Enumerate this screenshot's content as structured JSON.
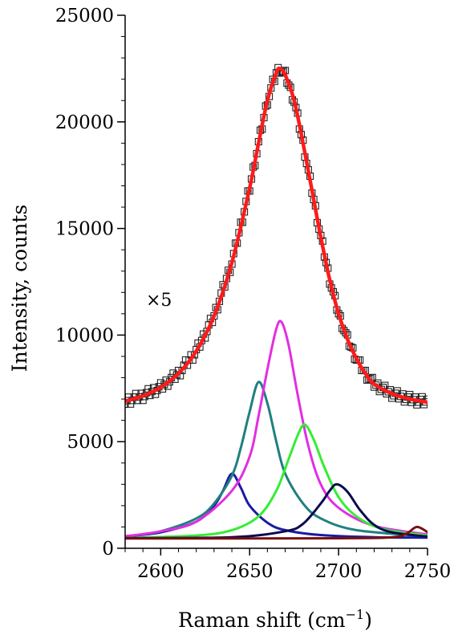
{
  "chart_data": {
    "type": "line",
    "xlabel_main": "Raman shift (cm",
    "xlabel_sup": "−1",
    "xlabel_close": ")",
    "ylabel": "Intensity, counts",
    "annotation": "×5",
    "xlim": [
      2580,
      2750
    ],
    "ylim": [
      0,
      25000
    ],
    "x_ticks": [
      2600,
      2650,
      2700,
      2750
    ],
    "y_ticks": [
      0,
      5000,
      10000,
      15000,
      20000,
      25000
    ],
    "grid": false,
    "series": [
      {
        "role": "measured",
        "marker": "open-square",
        "color": "#222222",
        "points": [
          [
            2580,
            6900
          ],
          [
            2590,
            7150
          ],
          [
            2600,
            7550
          ],
          [
            2610,
            8200
          ],
          [
            2620,
            9250
          ],
          [
            2630,
            10900
          ],
          [
            2640,
            13400
          ],
          [
            2650,
            16900
          ],
          [
            2655,
            19000
          ],
          [
            2660,
            21000
          ],
          [
            2665,
            22300
          ],
          [
            2667,
            22500
          ],
          [
            2670,
            22200
          ],
          [
            2675,
            21000
          ],
          [
            2680,
            19000
          ],
          [
            2685,
            16800
          ],
          [
            2690,
            14600
          ],
          [
            2695,
            12600
          ],
          [
            2700,
            11000
          ],
          [
            2705,
            9800
          ],
          [
            2710,
            8900
          ],
          [
            2715,
            8200
          ],
          [
            2720,
            7700
          ],
          [
            2730,
            7250
          ],
          [
            2740,
            7000
          ],
          [
            2750,
            6850
          ]
        ]
      },
      {
        "role": "fit",
        "color": "#ff1a1a",
        "points": [
          [
            2580,
            6900
          ],
          [
            2590,
            7150
          ],
          [
            2600,
            7550
          ],
          [
            2610,
            8200
          ],
          [
            2620,
            9250
          ],
          [
            2630,
            10900
          ],
          [
            2640,
            13400
          ],
          [
            2650,
            16900
          ],
          [
            2655,
            19000
          ],
          [
            2660,
            21000
          ],
          [
            2665,
            22300
          ],
          [
            2667,
            22500
          ],
          [
            2670,
            22200
          ],
          [
            2675,
            21000
          ],
          [
            2680,
            19000
          ],
          [
            2685,
            16800
          ],
          [
            2690,
            14600
          ],
          [
            2695,
            12600
          ],
          [
            2700,
            11000
          ],
          [
            2705,
            9800
          ],
          [
            2710,
            8900
          ],
          [
            2715,
            8200
          ],
          [
            2720,
            7700
          ],
          [
            2730,
            7250
          ],
          [
            2740,
            7000
          ],
          [
            2750,
            6850
          ]
        ]
      },
      {
        "role": "component",
        "color": "#1a1aa6",
        "points": [
          [
            2580,
            560
          ],
          [
            2600,
            750
          ],
          [
            2620,
            1250
          ],
          [
            2630,
            2000
          ],
          [
            2635,
            2700
          ],
          [
            2640,
            3500
          ],
          [
            2645,
            2850
          ],
          [
            2650,
            2000
          ],
          [
            2660,
            1200
          ],
          [
            2670,
            850
          ],
          [
            2690,
            620
          ],
          [
            2720,
            520
          ],
          [
            2750,
            500
          ]
        ]
      },
      {
        "role": "component",
        "color": "#1f8080",
        "points": [
          [
            2580,
            560
          ],
          [
            2600,
            800
          ],
          [
            2620,
            1400
          ],
          [
            2630,
            2100
          ],
          [
            2640,
            3400
          ],
          [
            2645,
            4700
          ],
          [
            2650,
            6400
          ],
          [
            2655,
            7800
          ],
          [
            2660,
            6800
          ],
          [
            2665,
            5000
          ],
          [
            2670,
            3500
          ],
          [
            2680,
            2100
          ],
          [
            2690,
            1400
          ],
          [
            2710,
            850
          ],
          [
            2750,
            560
          ]
        ]
      },
      {
        "role": "component",
        "color": "#e22ee2",
        "points": [
          [
            2580,
            560
          ],
          [
            2600,
            800
          ],
          [
            2620,
            1250
          ],
          [
            2640,
            2700
          ],
          [
            2650,
            4300
          ],
          [
            2655,
            6200
          ],
          [
            2660,
            8400
          ],
          [
            2665,
            10300
          ],
          [
            2668,
            10600
          ],
          [
            2672,
            9500
          ],
          [
            2677,
            7200
          ],
          [
            2683,
            4800
          ],
          [
            2690,
            3000
          ],
          [
            2700,
            1900
          ],
          [
            2720,
            1050
          ],
          [
            2750,
            650
          ]
        ]
      },
      {
        "role": "component",
        "color": "#33ee33",
        "points": [
          [
            2580,
            480
          ],
          [
            2620,
            600
          ],
          [
            2640,
            850
          ],
          [
            2655,
            1500
          ],
          [
            2665,
            2700
          ],
          [
            2672,
            4200
          ],
          [
            2677,
            5300
          ],
          [
            2681,
            5800
          ],
          [
            2686,
            5100
          ],
          [
            2692,
            3800
          ],
          [
            2700,
            2400
          ],
          [
            2710,
            1500
          ],
          [
            2725,
            900
          ],
          [
            2750,
            600
          ]
        ]
      },
      {
        "role": "component",
        "color": "#0a0a50",
        "points": [
          [
            2580,
            480
          ],
          [
            2640,
            520
          ],
          [
            2670,
            800
          ],
          [
            2680,
            1150
          ],
          [
            2690,
            2100
          ],
          [
            2695,
            2700
          ],
          [
            2699,
            3000
          ],
          [
            2705,
            2650
          ],
          [
            2712,
            1800
          ],
          [
            2720,
            1100
          ],
          [
            2730,
            750
          ],
          [
            2750,
            550
          ]
        ]
      },
      {
        "role": "component",
        "color": "#7a1010",
        "points": [
          [
            2580,
            460
          ],
          [
            2700,
            470
          ],
          [
            2730,
            520
          ],
          [
            2738,
            680
          ],
          [
            2744,
            1000
          ],
          [
            2750,
            760
          ]
        ]
      }
    ]
  }
}
